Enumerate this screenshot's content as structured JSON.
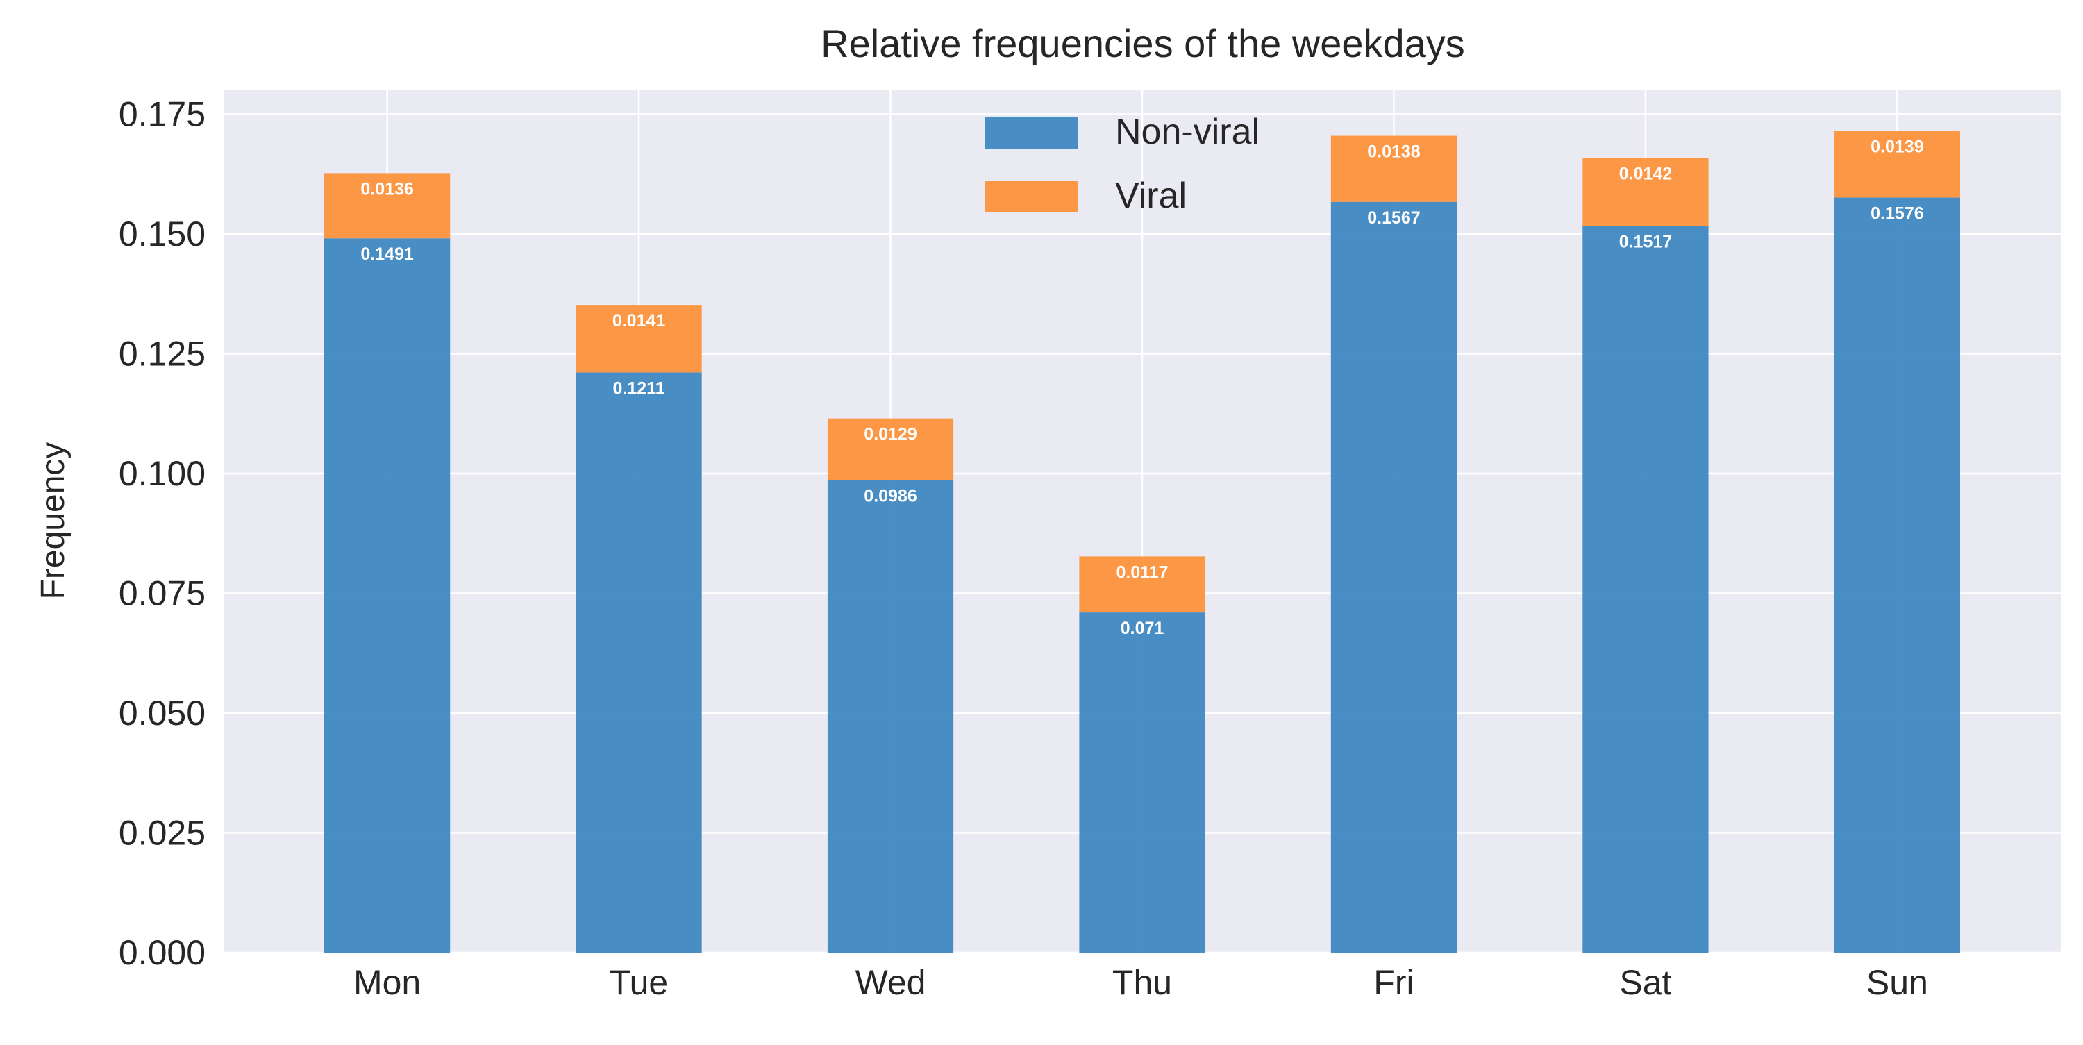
{
  "chart_data": {
    "type": "bar",
    "stacked": true,
    "title": "Relative frequencies of the weekdays",
    "xlabel": "",
    "ylabel": "Frequency",
    "ylim": [
      0,
      0.18
    ],
    "yticks": [
      0.0,
      0.025,
      0.05,
      0.075,
      0.1,
      0.125,
      0.15,
      0.175
    ],
    "ytick_labels": [
      "0.000",
      "0.025",
      "0.050",
      "0.075",
      "0.100",
      "0.125",
      "0.150",
      "0.175"
    ],
    "grid": true,
    "legend_position": "top-center",
    "categories": [
      "Mon",
      "Tue",
      "Wed",
      "Thu",
      "Fri",
      "Sat",
      "Sun"
    ],
    "series": [
      {
        "name": "Non-viral",
        "color": "#3a85c1",
        "values": [
          0.1491,
          0.1211,
          0.0986,
          0.071,
          0.1567,
          0.1517,
          0.1576
        ],
        "labels": [
          "0.1491",
          "0.1211",
          "0.0986",
          "0.071",
          "0.1567",
          "0.1517",
          "0.1576"
        ]
      },
      {
        "name": "Viral",
        "color": "#fd8f37",
        "values": [
          0.0136,
          0.0141,
          0.0129,
          0.0117,
          0.0138,
          0.0142,
          0.0139
        ],
        "labels": [
          "0.0136",
          "0.0141",
          "0.0129",
          "0.0117",
          "0.0138",
          "0.0142",
          "0.0139"
        ]
      }
    ],
    "background_color": "#eaeaf2",
    "grid_color": "#ffffff",
    "text_color": "#262626"
  }
}
